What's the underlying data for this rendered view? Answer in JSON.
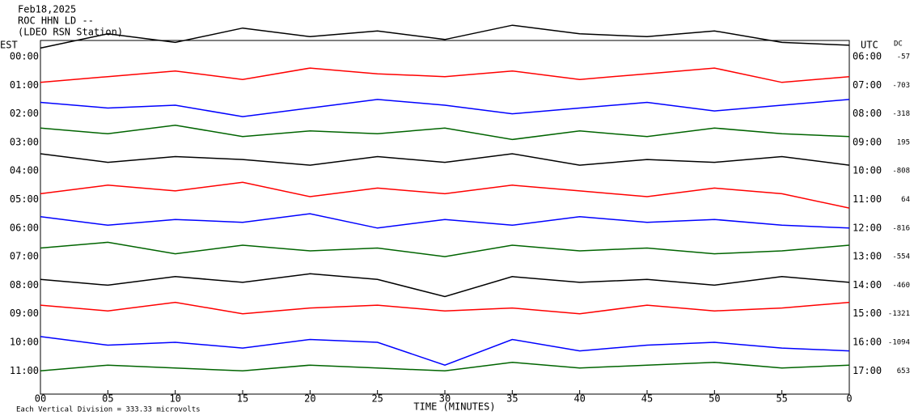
{
  "header": {
    "date": "Feb18,2025",
    "station": "ROC HHN LD --",
    "network": "(LDEO RSN Station)"
  },
  "chart_data": {
    "type": "helicorder",
    "left_label": "EST",
    "right_label": "UTC",
    "dc_label": "DC",
    "xlabel": "TIME (MINUTES)",
    "footnote": "Each Vertical Division = 333.33 microvolts",
    "xlim": [
      0,
      60
    ],
    "xticks": [
      {
        "value": 0,
        "label": "00"
      },
      {
        "value": 5,
        "label": "05"
      },
      10,
      15,
      20,
      25,
      30,
      35,
      40,
      45,
      50,
      55,
      {
        "value": 60,
        "label": "0"
      }
    ],
    "x": [
      0,
      5,
      10,
      15,
      20,
      25,
      30,
      35,
      40,
      45,
      50,
      55,
      60
    ],
    "rows": [
      {
        "est": "00:00",
        "utc": "06:00",
        "dc": -57,
        "color": "#000000",
        "values": [
          0.3,
          0.8,
          0.5,
          1.0,
          0.7,
          0.9,
          0.6,
          1.1,
          0.8,
          0.7,
          0.9,
          0.5,
          0.4
        ]
      },
      {
        "est": "01:00",
        "utc": "07:00",
        "dc": -703,
        "color": "#ff0000",
        "values": [
          0.1,
          0.3,
          0.5,
          0.2,
          0.6,
          0.4,
          0.3,
          0.5,
          0.2,
          0.4,
          0.6,
          0.1,
          0.3
        ]
      },
      {
        "est": "02:00",
        "utc": "08:00",
        "dc": -318,
        "color": "#0000ff",
        "values": [
          0.4,
          0.2,
          0.3,
          -0.1,
          0.2,
          0.5,
          0.3,
          0.0,
          0.2,
          0.4,
          0.1,
          0.3,
          0.5
        ]
      },
      {
        "est": "03:00",
        "utc": "09:00",
        "dc": 195,
        "color": "#006400",
        "values": [
          0.5,
          0.3,
          0.6,
          0.2,
          0.4,
          0.3,
          0.5,
          0.1,
          0.4,
          0.2,
          0.5,
          0.3,
          0.2
        ]
      },
      {
        "est": "04:00",
        "utc": "10:00",
        "dc": -808,
        "color": "#000000",
        "values": [
          0.6,
          0.3,
          0.5,
          0.4,
          0.2,
          0.5,
          0.3,
          0.6,
          0.2,
          0.4,
          0.3,
          0.5,
          0.2
        ]
      },
      {
        "est": "05:00",
        "utc": "11:00",
        "dc": 64,
        "color": "#ff0000",
        "values": [
          0.2,
          0.5,
          0.3,
          0.6,
          0.1,
          0.4,
          0.2,
          0.5,
          0.3,
          0.1,
          0.4,
          0.2,
          -0.3
        ]
      },
      {
        "est": "06:00",
        "utc": "12:00",
        "dc": -816,
        "color": "#0000ff",
        "values": [
          0.4,
          0.1,
          0.3,
          0.2,
          0.5,
          0.0,
          0.3,
          0.1,
          0.4,
          0.2,
          0.3,
          0.1,
          0.0
        ]
      },
      {
        "est": "07:00",
        "utc": "13:00",
        "dc": -554,
        "color": "#006400",
        "values": [
          0.3,
          0.5,
          0.1,
          0.4,
          0.2,
          0.3,
          0.0,
          0.4,
          0.2,
          0.3,
          0.1,
          0.2,
          0.4
        ]
      },
      {
        "est": "08:00",
        "utc": "14:00",
        "dc": -460,
        "color": "#000000",
        "values": [
          0.2,
          0.0,
          0.3,
          0.1,
          0.4,
          0.2,
          -0.4,
          0.3,
          0.1,
          0.2,
          0.0,
          0.3,
          0.1
        ]
      },
      {
        "est": "09:00",
        "utc": "15:00",
        "dc": -1321,
        "color": "#ff0000",
        "values": [
          0.3,
          0.1,
          0.4,
          0.0,
          0.2,
          0.3,
          0.1,
          0.2,
          0.0,
          0.3,
          0.1,
          0.2,
          0.4
        ]
      },
      {
        "est": "10:00",
        "utc": "16:00",
        "dc": -1094,
        "color": "#0000ff",
        "values": [
          0.2,
          -0.1,
          0.0,
          -0.2,
          0.1,
          0.0,
          -0.8,
          0.1,
          -0.3,
          -0.1,
          0.0,
          -0.2,
          -0.3
        ]
      },
      {
        "est": "11:00",
        "utc": "17:00",
        "dc": 653,
        "color": "#006400",
        "values": [
          0.0,
          0.2,
          0.1,
          0.0,
          0.2,
          0.1,
          0.0,
          0.3,
          0.1,
          0.2,
          0.3,
          0.1,
          0.2
        ]
      }
    ]
  }
}
